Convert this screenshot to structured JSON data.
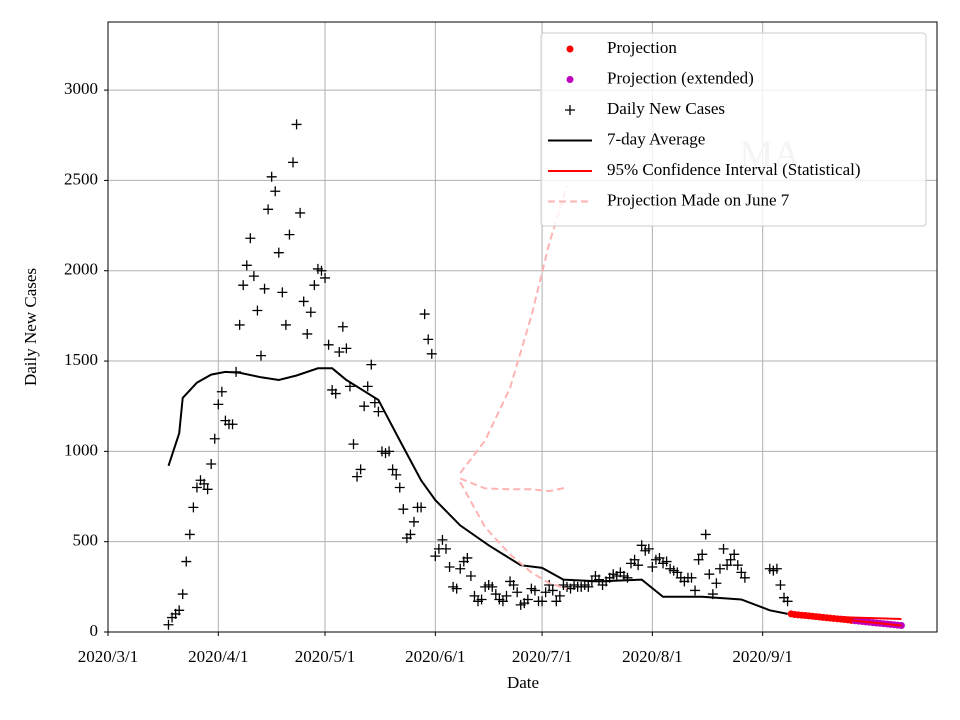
{
  "chart_data": {
    "type": "line",
    "x_label": "Date",
    "y_label": "Daily New Cases",
    "annotation": "MA",
    "xlim": [
      "2020/3/1",
      "2020/10/20"
    ],
    "xticks": [
      "2020/3/1",
      "2020/4/1",
      "2020/5/1",
      "2020/6/1",
      "2020/7/1",
      "2020/8/1",
      "2020/9/1"
    ],
    "ylim": [
      0,
      3377
    ],
    "yticks": [
      0,
      500,
      1000,
      1500,
      2000,
      2500,
      3000
    ],
    "grid": true,
    "legend": "upper right",
    "series": [
      {
        "name": "Projection",
        "kind": "dot",
        "color": "#ff0000",
        "x": [
          "2020/9/9",
          "2020/9/10",
          "2020/9/11",
          "2020/9/12",
          "2020/9/13",
          "2020/9/14",
          "2020/9/15",
          "2020/9/16",
          "2020/9/17",
          "2020/9/18",
          "2020/9/19",
          "2020/9/20",
          "2020/9/21",
          "2020/9/22",
          "2020/9/23",
          "2020/9/24",
          "2020/9/25",
          "2020/9/26"
        ],
        "values": [
          100,
          97,
          95,
          93,
          91,
          89,
          87,
          85,
          83,
          81,
          79,
          77,
          75,
          73,
          71,
          69,
          67,
          64
        ]
      },
      {
        "name": "Projection (extended)",
        "kind": "dot",
        "color": "#bf00bf",
        "x": [
          "2020/9/27",
          "2020/9/28",
          "2020/9/29",
          "2020/9/30",
          "2020/10/1",
          "2020/10/2",
          "2020/10/3",
          "2020/10/4",
          "2020/10/5",
          "2020/10/6",
          "2020/10/7",
          "2020/10/8",
          "2020/10/9",
          "2020/10/10"
        ],
        "values": [
          62,
          60,
          58,
          56,
          54,
          52,
          50,
          48,
          46,
          44,
          42,
          40,
          38,
          36
        ]
      },
      {
        "name": "Daily New Cases",
        "kind": "plus",
        "color": "#000000",
        "x": [
          "2020/3/18",
          "2020/3/19",
          "2020/3/20",
          "2020/3/21",
          "2020/3/22",
          "2020/3/23",
          "2020/3/24",
          "2020/3/25",
          "2020/3/26",
          "2020/3/27",
          "2020/3/28",
          "2020/3/29",
          "2020/3/30",
          "2020/3/31",
          "2020/4/1",
          "2020/4/2",
          "2020/4/3",
          "2020/4/4",
          "2020/4/5",
          "2020/4/6",
          "2020/4/7",
          "2020/4/8",
          "2020/4/9",
          "2020/4/10",
          "2020/4/11",
          "2020/4/12",
          "2020/4/13",
          "2020/4/14",
          "2020/4/15",
          "2020/4/16",
          "2020/4/17",
          "2020/4/18",
          "2020/4/19",
          "2020/4/20",
          "2020/4/21",
          "2020/4/22",
          "2020/4/23",
          "2020/4/24",
          "2020/4/25",
          "2020/4/26",
          "2020/4/27",
          "2020/4/28",
          "2020/4/29",
          "2020/4/30",
          "2020/5/1",
          "2020/5/2",
          "2020/5/3",
          "2020/5/4",
          "2020/5/5",
          "2020/5/6",
          "2020/5/7",
          "2020/5/8",
          "2020/5/9",
          "2020/5/10",
          "2020/5/11",
          "2020/5/12",
          "2020/5/13",
          "2020/5/14",
          "2020/5/15",
          "2020/5/16",
          "2020/5/17",
          "2020/5/18",
          "2020/5/19",
          "2020/5/20",
          "2020/5/21",
          "2020/5/22",
          "2020/5/23",
          "2020/5/24",
          "2020/5/25",
          "2020/5/26",
          "2020/5/27",
          "2020/5/28",
          "2020/5/29",
          "2020/5/30",
          "2020/5/31",
          "2020/6/1",
          "2020/6/2",
          "2020/6/3",
          "2020/6/4",
          "2020/6/5",
          "2020/6/6",
          "2020/6/7",
          "2020/6/8",
          "2020/6/9",
          "2020/6/10",
          "2020/6/11",
          "2020/6/12",
          "2020/6/13",
          "2020/6/14",
          "2020/6/15",
          "2020/6/16",
          "2020/6/17",
          "2020/6/18",
          "2020/6/19",
          "2020/6/20",
          "2020/6/21",
          "2020/6/22",
          "2020/6/23",
          "2020/6/24",
          "2020/6/25",
          "2020/6/26",
          "2020/6/27",
          "2020/6/28",
          "2020/6/29",
          "2020/6/30",
          "2020/7/1",
          "2020/7/2",
          "2020/7/3",
          "2020/7/4",
          "2020/7/5",
          "2020/7/6",
          "2020/7/7",
          "2020/7/8",
          "2020/7/9",
          "2020/7/10",
          "2020/7/11",
          "2020/7/12",
          "2020/7/13",
          "2020/7/14",
          "2020/7/15",
          "2020/7/16",
          "2020/7/17",
          "2020/7/18",
          "2020/7/19",
          "2020/7/20",
          "2020/7/21",
          "2020/7/22",
          "2020/7/23",
          "2020/7/24",
          "2020/7/25",
          "2020/7/26",
          "2020/7/27",
          "2020/7/28",
          "2020/7/29",
          "2020/7/30",
          "2020/7/31",
          "2020/8/1",
          "2020/8/2",
          "2020/8/3",
          "2020/8/4",
          "2020/8/5",
          "2020/8/6",
          "2020/8/7",
          "2020/8/8",
          "2020/8/9",
          "2020/8/10",
          "2020/8/11",
          "2020/8/12",
          "2020/8/13",
          "2020/8/14",
          "2020/8/15",
          "2020/8/16",
          "2020/8/17",
          "2020/8/18",
          "2020/8/19",
          "2020/8/20",
          "2020/8/21",
          "2020/8/22",
          "2020/8/23",
          "2020/8/24",
          "2020/8/25",
          "2020/8/26",
          "2020/8/27",
          "2020/9/3",
          "2020/9/4",
          "2020/9/5",
          "2020/9/6",
          "2020/9/7",
          "2020/9/8"
        ],
        "values": [
          40,
          80,
          100,
          120,
          210,
          390,
          540,
          690,
          800,
          840,
          820,
          790,
          930,
          1070,
          1260,
          1330,
          1170,
          1150,
          1150,
          1440,
          1700,
          1920,
          2030,
          2180,
          1970,
          1780,
          1530,
          1900,
          2340,
          2520,
          2440,
          2100,
          1880,
          1700,
          2200,
          2600,
          2810,
          2320,
          1830,
          1650,
          1770,
          1920,
          2010,
          2000,
          1960,
          1590,
          1340,
          1320,
          1550,
          1690,
          1570,
          1360,
          1040,
          860,
          900,
          1250,
          1360,
          1480,
          1270,
          1220,
          1000,
          990,
          1000,
          900,
          870,
          800,
          680,
          520,
          540,
          610,
          690,
          690,
          1760,
          1620,
          1540,
          420,
          460,
          510,
          460,
          360,
          250,
          240,
          350,
          390,
          410,
          310,
          200,
          170,
          180,
          250,
          260,
          250,
          210,
          180,
          170,
          200,
          280,
          260,
          220,
          150,
          160,
          180,
          240,
          230,
          170,
          170,
          220,
          260,
          230,
          170,
          200,
          260,
          250,
          240,
          260,
          250,
          250,
          260,
          250,
          280,
          310,
          290,
          260,
          280,
          300,
          320,
          310,
          330,
          310,
          300,
          380,
          400,
          370,
          480,
          450,
          460,
          360,
          400,
          410,
          380,
          390,
          350,
          340,
          330,
          300,
          280,
          300,
          300,
          230,
          400,
          430,
          540,
          320,
          210,
          270,
          350,
          460,
          370,
          400,
          430,
          370,
          330,
          300,
          350,
          340,
          350,
          260,
          190,
          170
        ]
      },
      {
        "name": "7-day Average",
        "kind": "line",
        "color": "#000000",
        "x": [
          "2020/3/18",
          "2020/3/21",
          "2020/3/22",
          "2020/3/26",
          "2020/3/30",
          "2020/4/3",
          "2020/4/7",
          "2020/4/13",
          "2020/4/18",
          "2020/4/23",
          "2020/4/29",
          "2020/5/3",
          "2020/5/7",
          "2020/5/16",
          "2020/5/22",
          "2020/5/28",
          "2020/6/1",
          "2020/6/8",
          "2020/6/16",
          "2020/6/25",
          "2020/7/1",
          "2020/7/7",
          "2020/7/17",
          "2020/7/29",
          "2020/8/4",
          "2020/8/15",
          "2020/8/26",
          "2020/9/3",
          "2020/9/8"
        ],
        "values": [
          920,
          1100,
          1296,
          1380,
          1425,
          1440,
          1435,
          1410,
          1395,
          1420,
          1460,
          1460,
          1395,
          1285,
          1060,
          840,
          730,
          590,
          480,
          370,
          355,
          290,
          280,
          290,
          195,
          195,
          180,
          120,
          100
        ]
      },
      {
        "name": "95% Confidence Interval (Statistical)",
        "kind": "line",
        "color": "#ff0000",
        "x": [
          "2020/9/9",
          "2020/9/17",
          "2020/9/26",
          "2020/10/3",
          "2020/10/10"
        ],
        "upper": [
          95,
          88,
          80,
          76,
          72
        ],
        "lower": [
          92,
          82,
          64,
          50,
          36
        ]
      },
      {
        "name": "Projection Made on June 7",
        "kind": "dashed",
        "color": "#ffb3b3",
        "x": [
          "2020/6/8",
          "2020/6/15",
          "2020/6/22",
          "2020/6/28",
          "2020/7/3",
          "2020/7/8"
        ],
        "values": [
          850,
          795,
          790,
          790,
          780,
          800
        ],
        "upper": [
          880,
          1060,
          1350,
          1750,
          2150,
          2470
        ],
        "lower": [
          830,
          580,
          430,
          330,
          270,
          240
        ]
      }
    ]
  }
}
